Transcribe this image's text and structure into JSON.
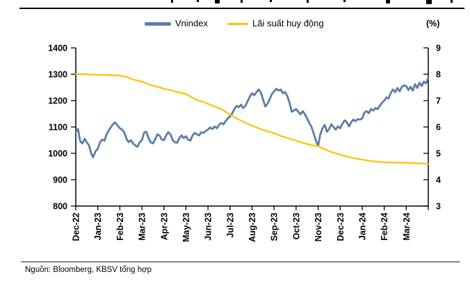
{
  "legend": {
    "items": [
      {
        "label": "Vnindex",
        "color": "#5B7CA6"
      },
      {
        "label": "Lãi suất huy động",
        "color": "#FFC000"
      }
    ]
  },
  "footer": {
    "source": "Nguồn: Bloomberg, KBSV tổng hợp"
  },
  "chart_data": {
    "type": "line",
    "title": "",
    "grid": false,
    "legend_position": "top",
    "x_axis": {
      "unit": "month",
      "domain_months": [
        0,
        16
      ],
      "tick_labels": [
        "Dec-22",
        "Jan-23",
        "Feb-23",
        "Mar-23",
        "Apr-23",
        "May-23",
        "Jun-23",
        "Jul-23",
        "Aug-23",
        "Sep-23",
        "Oct-23",
        "Nov-23",
        "Dec-23",
        "Jan-24",
        "Feb-24",
        "Mar-24"
      ]
    },
    "y_left": {
      "range": [
        800,
        1400
      ],
      "ticks": [
        1400,
        1300,
        1200,
        1100,
        1000,
        900,
        800
      ],
      "label": ""
    },
    "y_right": {
      "range": [
        3,
        9
      ],
      "ticks": [
        9,
        8,
        7,
        6,
        5,
        4,
        3
      ],
      "label": "(%)"
    },
    "series": [
      {
        "name": "Vnindex",
        "axis": "left",
        "color": "#5B7CA6",
        "stroke_width": 2.8,
        "points": [
          [
            0.0,
            1080
          ],
          [
            0.1,
            1092
          ],
          [
            0.2,
            1046
          ],
          [
            0.3,
            1038
          ],
          [
            0.4,
            1055
          ],
          [
            0.5,
            1042
          ],
          [
            0.6,
            1030
          ],
          [
            0.7,
            1000
          ],
          [
            0.78,
            985
          ],
          [
            0.9,
            1008
          ],
          [
            1.0,
            1018
          ],
          [
            1.1,
            1042
          ],
          [
            1.2,
            1052
          ],
          [
            1.3,
            1048
          ],
          [
            1.4,
            1072
          ],
          [
            1.5,
            1088
          ],
          [
            1.6,
            1100
          ],
          [
            1.7,
            1112
          ],
          [
            1.78,
            1117
          ],
          [
            1.9,
            1105
          ],
          [
            2.0,
            1095
          ],
          [
            2.1,
            1090
          ],
          [
            2.2,
            1080
          ],
          [
            2.3,
            1055
          ],
          [
            2.4,
            1042
          ],
          [
            2.5,
            1050
          ],
          [
            2.6,
            1038
          ],
          [
            2.7,
            1030
          ],
          [
            2.8,
            1025
          ],
          [
            2.9,
            1042
          ],
          [
            3.0,
            1050
          ],
          [
            3.1,
            1078
          ],
          [
            3.2,
            1082
          ],
          [
            3.3,
            1058
          ],
          [
            3.4,
            1042
          ],
          [
            3.5,
            1038
          ],
          [
            3.6,
            1052
          ],
          [
            3.7,
            1072
          ],
          [
            3.8,
            1068
          ],
          [
            3.9,
            1052
          ],
          [
            4.0,
            1050
          ],
          [
            4.1,
            1068
          ],
          [
            4.2,
            1080
          ],
          [
            4.3,
            1072
          ],
          [
            4.4,
            1050
          ],
          [
            4.5,
            1042
          ],
          [
            4.6,
            1040
          ],
          [
            4.7,
            1058
          ],
          [
            4.8,
            1068
          ],
          [
            4.9,
            1058
          ],
          [
            5.0,
            1065
          ],
          [
            5.1,
            1052
          ],
          [
            5.2,
            1048
          ],
          [
            5.3,
            1068
          ],
          [
            5.4,
            1078
          ],
          [
            5.5,
            1072
          ],
          [
            5.6,
            1068
          ],
          [
            5.7,
            1080
          ],
          [
            5.8,
            1078
          ],
          [
            5.9,
            1085
          ],
          [
            6.0,
            1090
          ],
          [
            6.1,
            1098
          ],
          [
            6.2,
            1092
          ],
          [
            6.3,
            1102
          ],
          [
            6.4,
            1095
          ],
          [
            6.5,
            1108
          ],
          [
            6.6,
            1115
          ],
          [
            6.7,
            1110
          ],
          [
            6.8,
            1122
          ],
          [
            6.9,
            1132
          ],
          [
            7.0,
            1140
          ],
          [
            7.1,
            1152
          ],
          [
            7.2,
            1168
          ],
          [
            7.3,
            1180
          ],
          [
            7.4,
            1175
          ],
          [
            7.5,
            1185
          ],
          [
            7.6,
            1172
          ],
          [
            7.7,
            1180
          ],
          [
            7.8,
            1198
          ],
          [
            7.9,
            1215
          ],
          [
            8.0,
            1228
          ],
          [
            8.1,
            1220
          ],
          [
            8.2,
            1232
          ],
          [
            8.3,
            1242
          ],
          [
            8.4,
            1230
          ],
          [
            8.5,
            1205
          ],
          [
            8.6,
            1178
          ],
          [
            8.7,
            1188
          ],
          [
            8.8,
            1205
          ],
          [
            8.9,
            1225
          ],
          [
            9.0,
            1235
          ],
          [
            9.1,
            1245
          ],
          [
            9.2,
            1238
          ],
          [
            9.3,
            1242
          ],
          [
            9.4,
            1228
          ],
          [
            9.5,
            1232
          ],
          [
            9.6,
            1218
          ],
          [
            9.7,
            1192
          ],
          [
            9.8,
            1158
          ],
          [
            9.9,
            1162
          ],
          [
            10.0,
            1168
          ],
          [
            10.1,
            1158
          ],
          [
            10.2,
            1148
          ],
          [
            10.3,
            1160
          ],
          [
            10.4,
            1148
          ],
          [
            10.5,
            1132
          ],
          [
            10.6,
            1115
          ],
          [
            10.7,
            1100
          ],
          [
            10.8,
            1075
          ],
          [
            10.9,
            1048
          ],
          [
            11.0,
            1028
          ],
          [
            11.1,
            1072
          ],
          [
            11.2,
            1095
          ],
          [
            11.3,
            1108
          ],
          [
            11.4,
            1082
          ],
          [
            11.5,
            1092
          ],
          [
            11.6,
            1110
          ],
          [
            11.7,
            1100
          ],
          [
            11.8,
            1090
          ],
          [
            11.9,
            1102
          ],
          [
            12.0,
            1095
          ],
          [
            12.1,
            1112
          ],
          [
            12.2,
            1125
          ],
          [
            12.3,
            1118
          ],
          [
            12.4,
            1102
          ],
          [
            12.5,
            1118
          ],
          [
            12.6,
            1128
          ],
          [
            12.7,
            1122
          ],
          [
            12.8,
            1130
          ],
          [
            12.9,
            1128
          ],
          [
            13.0,
            1132
          ],
          [
            13.1,
            1155
          ],
          [
            13.2,
            1160
          ],
          [
            13.3,
            1152
          ],
          [
            13.4,
            1168
          ],
          [
            13.5,
            1162
          ],
          [
            13.6,
            1172
          ],
          [
            13.7,
            1168
          ],
          [
            13.8,
            1180
          ],
          [
            13.9,
            1192
          ],
          [
            14.0,
            1200
          ],
          [
            14.1,
            1212
          ],
          [
            14.2,
            1208
          ],
          [
            14.3,
            1230
          ],
          [
            14.4,
            1242
          ],
          [
            14.5,
            1232
          ],
          [
            14.6,
            1248
          ],
          [
            14.7,
            1235
          ],
          [
            14.8,
            1252
          ],
          [
            14.9,
            1258
          ],
          [
            15.0,
            1255
          ],
          [
            15.1,
            1240
          ],
          [
            15.2,
            1252
          ],
          [
            15.3,
            1238
          ],
          [
            15.4,
            1262
          ],
          [
            15.5,
            1248
          ],
          [
            15.6,
            1268
          ],
          [
            15.7,
            1255
          ],
          [
            15.8,
            1272
          ],
          [
            15.9,
            1265
          ],
          [
            16.0,
            1287
          ]
        ]
      },
      {
        "name": "Lãi suất huy động",
        "axis": "right",
        "color": "#FFC000",
        "stroke_width": 2.2,
        "points": [
          [
            0,
            8.0
          ],
          [
            0.5,
            8.0
          ],
          [
            1.0,
            7.98
          ],
          [
            1.5,
            7.97
          ],
          [
            2.0,
            7.95
          ],
          [
            2.3,
            7.9
          ],
          [
            2.6,
            7.8
          ],
          [
            3.0,
            7.72
          ],
          [
            3.3,
            7.62
          ],
          [
            3.6,
            7.55
          ],
          [
            4.0,
            7.45
          ],
          [
            4.3,
            7.4
          ],
          [
            4.6,
            7.33
          ],
          [
            5.0,
            7.25
          ],
          [
            5.2,
            7.15
          ],
          [
            5.5,
            7.02
          ],
          [
            5.8,
            6.95
          ],
          [
            6.0,
            6.88
          ],
          [
            6.3,
            6.78
          ],
          [
            6.6,
            6.68
          ],
          [
            7.0,
            6.48
          ],
          [
            7.3,
            6.32
          ],
          [
            7.6,
            6.2
          ],
          [
            8.0,
            6.05
          ],
          [
            8.3,
            5.95
          ],
          [
            8.6,
            5.86
          ],
          [
            9.0,
            5.76
          ],
          [
            9.3,
            5.66
          ],
          [
            9.6,
            5.58
          ],
          [
            10.0,
            5.48
          ],
          [
            10.3,
            5.4
          ],
          [
            10.6,
            5.33
          ],
          [
            11.0,
            5.27
          ],
          [
            11.3,
            5.15
          ],
          [
            11.6,
            5.05
          ],
          [
            12.0,
            4.95
          ],
          [
            12.3,
            4.88
          ],
          [
            12.6,
            4.82
          ],
          [
            13.0,
            4.76
          ],
          [
            13.3,
            4.72
          ],
          [
            13.6,
            4.69
          ],
          [
            14.0,
            4.66
          ],
          [
            14.5,
            4.65
          ],
          [
            15.0,
            4.64
          ],
          [
            15.5,
            4.62
          ],
          [
            16.0,
            4.6
          ]
        ]
      }
    ]
  }
}
